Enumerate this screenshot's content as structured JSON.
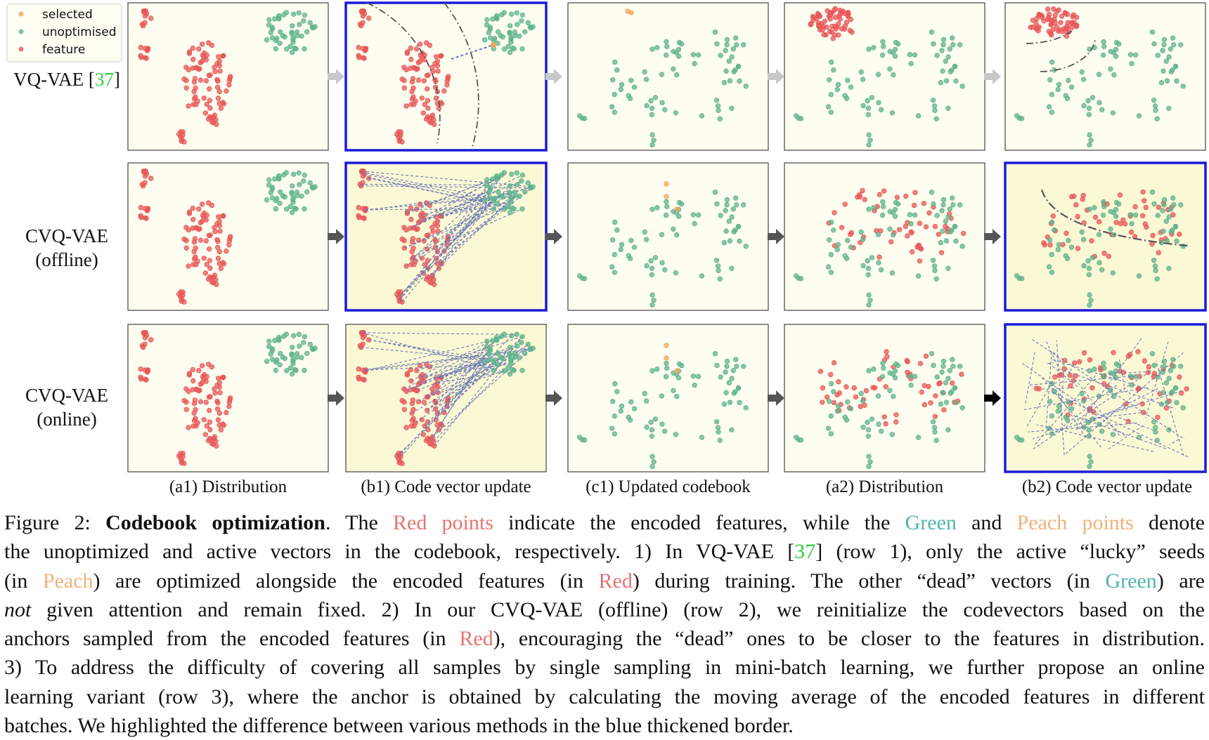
{
  "legend": {
    "items": [
      {
        "label": "selected",
        "color": "#f4a460"
      },
      {
        "label": "unoptimised",
        "color": "#5fb38c"
      },
      {
        "label": "feature",
        "color": "#e8575a"
      }
    ]
  },
  "rows": [
    {
      "label_line1": "VQ-VAE [",
      "cite": "37",
      "label_line1_end": "]",
      "label_line2": ""
    },
    {
      "label_line1": "CVQ-VAE",
      "label_line2": "(offline)"
    },
    {
      "label_line1": "CVQ-VAE",
      "label_line2": "(online)"
    }
  ],
  "column_labels": [
    "(a1) Distribution",
    "(b1) Code vector update",
    "(c1) Updated codebook",
    "(a2) Distribution",
    "(b2) Code vector update"
  ],
  "caption": {
    "l1_a": "Figure 2: ",
    "l1_bold": "Codebook optimization",
    "l1_b": ". The ",
    "l1_red": "Red points",
    "l1_c": " indicate the encoded features, while the ",
    "l1_green": "Green",
    "l1_d": " and ",
    "l1_peach": "Peach points",
    "l1_e": " denote",
    "l2_a": "the unoptimized and active vectors in the codebook, respectively. 1) In VQ-VAE [",
    "l2_cite": "37",
    "l2_b": "] (row 1), only the active “lucky” seeds",
    "l3_a": "(in ",
    "l3_peach": "Peach",
    "l3_b": ") are optimized alongside the encoded features (in ",
    "l3_red": "Red",
    "l3_c": ") during training. The other “dead” vectors (in ",
    "l3_green": "Green",
    "l3_d": ") are",
    "l4_italic": "not",
    "l4_a": " given attention and remain fixed. 2) In our CVQ-VAE (offline) (row 2), we reinitialize the codevectors based on the",
    "l5_a": "anchors sampled from the encoded features (in ",
    "l5_red": "Red",
    "l5_b": "), encouraging the “dead” ones to be closer to the features in distribution.",
    "l6": "3) To address the difficulty of covering all samples by single sampling in mini-batch learning, we further propose an online",
    "l7": "learning variant (row 3), where the anchor is obtained by calculating the moving average of the encoded features in different",
    "l8": "batches. We highlighted the difference between various methods in the blue thickened border."
  },
  "colors": {
    "feature": "#e8575a",
    "unoptimised": "#5fb38c",
    "selected": "#f4a460",
    "panel_bg": "#fefef0",
    "highlight_border": "#1a1adc",
    "arrow_grey": "#c8c8c8",
    "arrow_dark": "#555555",
    "arrow_black": "#000000"
  }
}
